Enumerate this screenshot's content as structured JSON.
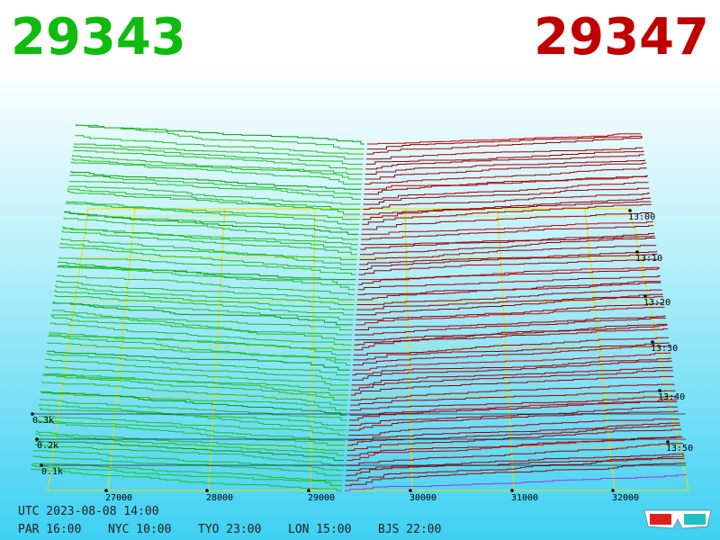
{
  "header": {
    "bid": "29343",
    "ask": "29347"
  },
  "axis": {
    "price_labels": [
      "27000",
      "28000",
      "29000",
      "30000",
      "31000",
      "32000"
    ],
    "depth_labels": [
      "0.3k",
      "0.2k",
      "0.1k"
    ],
    "time_labels": [
      "13:00",
      "13:10",
      "13:20",
      "13:30",
      "13:40",
      "13:50"
    ]
  },
  "footer": {
    "utc": "UTC 2023-08-08 14:00",
    "cities": [
      "PAR 16:00",
      "NYC 10:00",
      "TYO 23:00",
      "LON 15:00",
      "BJS 22:00"
    ]
  }
}
